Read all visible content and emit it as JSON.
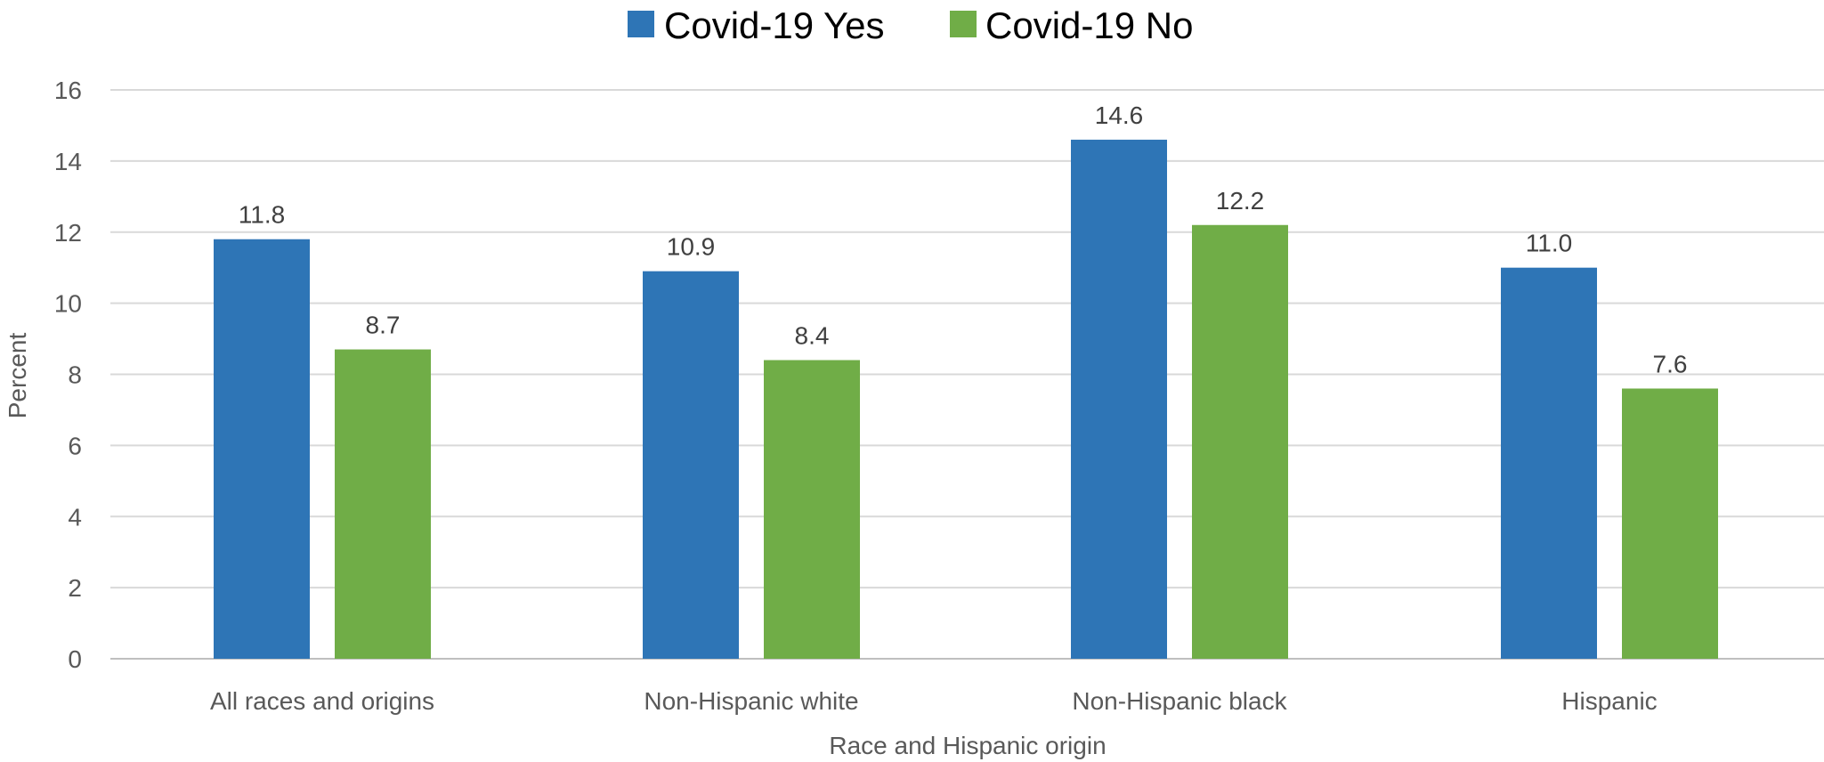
{
  "chart_data": {
    "type": "bar",
    "title": "",
    "xlabel": "Race and Hispanic origin",
    "ylabel": "Percent",
    "ylim": [
      0,
      16
    ],
    "yticks": [
      0,
      2,
      4,
      6,
      8,
      10,
      12,
      14,
      16
    ],
    "grid": true,
    "legend_position": "top-center",
    "categories": [
      "All races and origins",
      "Non-Hispanic white",
      "Non-Hispanic black",
      "Hispanic"
    ],
    "series": [
      {
        "name": "Covid-19 Yes",
        "color": "#2E75B6",
        "values": [
          11.8,
          10.9,
          14.6,
          11.0
        ],
        "labels": [
          "11.8",
          "10.9",
          "14.6",
          "11.0"
        ]
      },
      {
        "name": "Covid-19 No",
        "color": "#70AD47",
        "values": [
          8.7,
          8.4,
          12.2,
          7.6
        ],
        "labels": [
          "8.7",
          "8.4",
          "12.2",
          "7.6"
        ]
      }
    ]
  }
}
